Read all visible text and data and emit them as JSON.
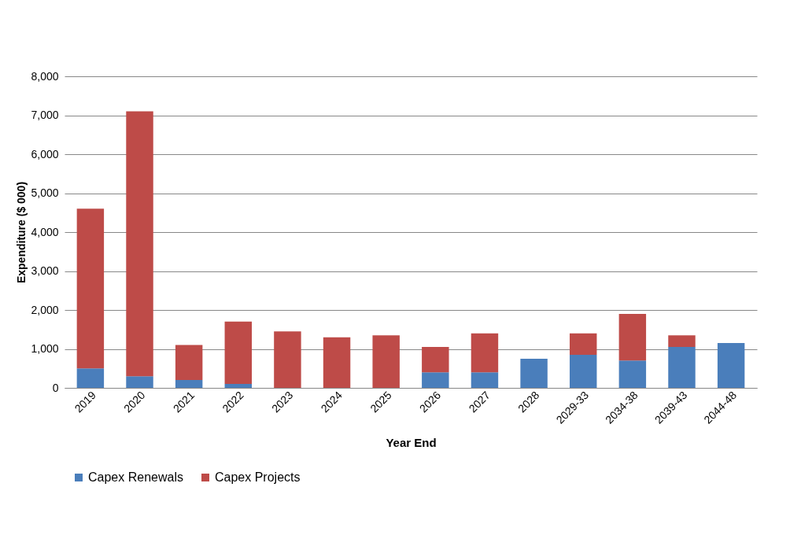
{
  "chart_data": {
    "type": "bar",
    "stacked": true,
    "xlabel": "Year End",
    "ylabel": "Expenditure ($ 000)",
    "categories": [
      "2019",
      "2020",
      "2021",
      "2022",
      "2023",
      "2024",
      "2025",
      "2026",
      "2027",
      "2028",
      "2029-33",
      "2034-38",
      "2039-43",
      "2044-48"
    ],
    "series": [
      {
        "name": "Capex Renewals",
        "color": "#4a7ebb",
        "values": [
          500,
          300,
          200,
          100,
          0,
          0,
          0,
          400,
          400,
          750,
          850,
          700,
          1050,
          1150
        ]
      },
      {
        "name": "Capex Projects",
        "color": "#be4b48",
        "values": [
          4100,
          6800,
          900,
          1600,
          1450,
          1300,
          1350,
          650,
          1000,
          0,
          550,
          1200,
          300,
          0
        ]
      }
    ],
    "ylim": [
      0,
      8000
    ],
    "yticks": [
      {
        "value": 0,
        "label": "0"
      },
      {
        "value": 1000,
        "label": "1,000"
      },
      {
        "value": 2000,
        "label": "2,000"
      },
      {
        "value": 3000,
        "label": "3,000"
      },
      {
        "value": 4000,
        "label": "4,000"
      },
      {
        "value": 5000,
        "label": "5,000"
      },
      {
        "value": 6000,
        "label": "6,000"
      },
      {
        "value": 7000,
        "label": "7,000"
      },
      {
        "value": 8000,
        "label": "8,000"
      }
    ],
    "grid": "y",
    "legend": "bottom"
  }
}
